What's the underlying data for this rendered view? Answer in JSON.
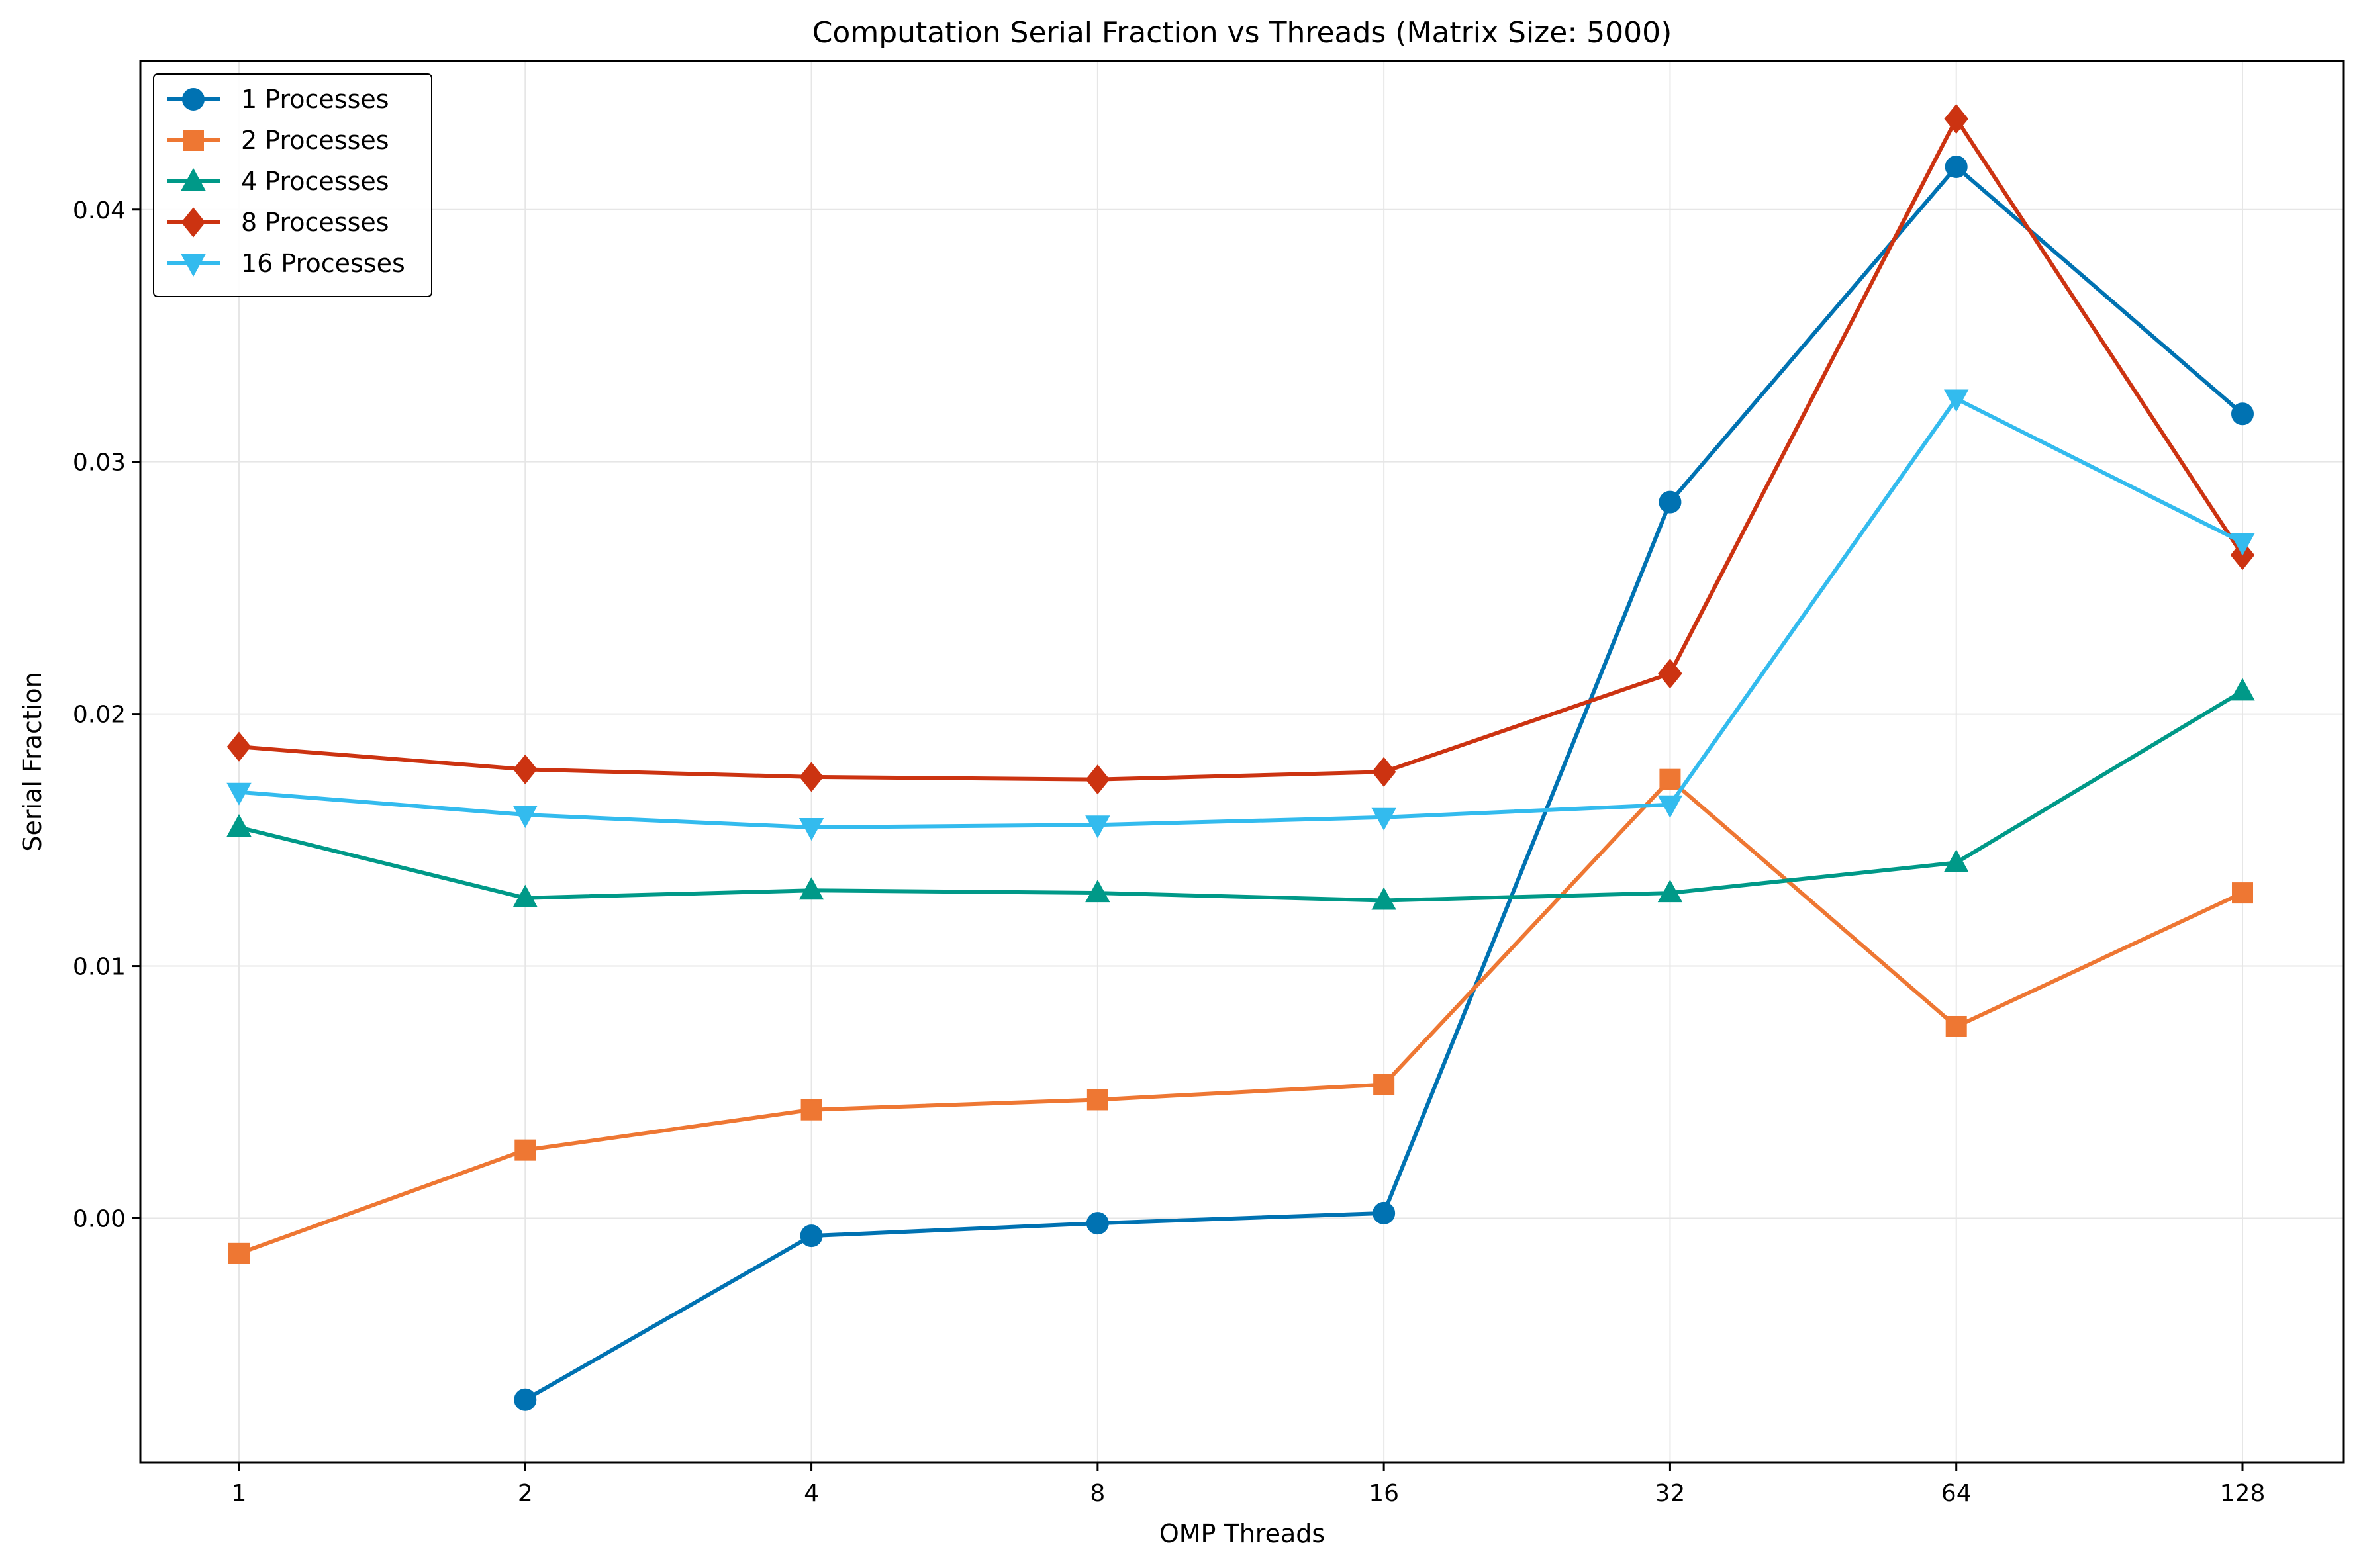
{
  "chart_data": {
    "type": "line",
    "title": "Computation Serial Fraction vs Threads (Matrix Size: 5000)",
    "xlabel": "OMP Threads",
    "ylabel": "Serial Fraction",
    "x_scale": "log2",
    "categories": [
      "1",
      "2",
      "4",
      "8",
      "16",
      "32",
      "64",
      "128"
    ],
    "x": [
      1,
      2,
      4,
      8,
      16,
      32,
      64,
      128
    ],
    "ylim": [
      -0.0097,
      0.0459
    ],
    "yticks": [
      0.0,
      0.01,
      0.02,
      0.03,
      0.04
    ],
    "ytick_labels": [
      "0.00",
      "0.01",
      "0.02",
      "0.03",
      "0.04"
    ],
    "grid": true,
    "legend_position": "upper-left",
    "series": [
      {
        "name": "1 Processes",
        "color": "#0072B2",
        "marker": "circle",
        "values": [
          null,
          -0.0072,
          -0.0007,
          -0.0002,
          0.0002,
          0.0284,
          0.0417,
          0.0319
        ]
      },
      {
        "name": "2 Processes",
        "color": "#EE7733",
        "marker": "square",
        "values": [
          -0.0014,
          0.0027,
          0.0043,
          0.0047,
          0.0053,
          0.0174,
          0.0076,
          0.0129
        ]
      },
      {
        "name": "4 Processes",
        "color": "#009988",
        "marker": "triangle-up",
        "values": [
          0.0155,
          0.0127,
          0.013,
          0.0129,
          0.0126,
          0.0129,
          0.0141,
          0.0209
        ]
      },
      {
        "name": "8 Processes",
        "color": "#CC3311",
        "marker": "diamond",
        "values": [
          0.0187,
          0.0178,
          0.0175,
          0.0174,
          0.0177,
          0.0216,
          0.0436,
          0.0263
        ]
      },
      {
        "name": "16 Processes",
        "color": "#33BBEE",
        "marker": "triangle-down",
        "values": [
          0.0169,
          0.016,
          0.0155,
          0.0156,
          0.0159,
          0.0164,
          0.0325,
          0.0268
        ]
      }
    ]
  }
}
